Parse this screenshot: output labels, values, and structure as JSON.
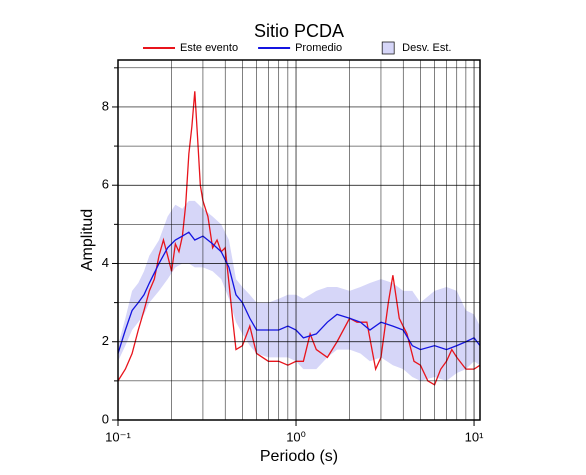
{
  "chart_data": {
    "type": "line",
    "title": "Sitio PCDA",
    "x_label": "Periodo (s)",
    "y_label": "Amplitud",
    "xscale": "log",
    "grid": true,
    "minor_grid": true,
    "legend": "top",
    "xlim": [
      0.1,
      10.8
    ],
    "ylim": [
      0,
      9.2
    ],
    "xticks": [
      {
        "value": 0.1,
        "label": "10⁻¹"
      },
      {
        "value": 1,
        "label": "10⁰"
      },
      {
        "value": 10,
        "label": "10¹"
      }
    ],
    "yticks": [
      0,
      2,
      4,
      6,
      8
    ],
    "series": [
      {
        "name": "Este evento",
        "color": "#e8141c",
        "x": [
          0.1,
          0.11,
          0.12,
          0.13,
          0.14,
          0.15,
          0.16,
          0.17,
          0.18,
          0.19,
          0.2,
          0.21,
          0.22,
          0.23,
          0.24,
          0.25,
          0.26,
          0.27,
          0.28,
          0.29,
          0.3,
          0.32,
          0.34,
          0.36,
          0.38,
          0.4,
          0.42,
          0.44,
          0.46,
          0.5,
          0.55,
          0.6,
          0.7,
          0.8,
          0.9,
          1.0,
          1.1,
          1.2,
          1.3,
          1.5,
          1.7,
          2.0,
          2.2,
          2.5,
          2.8,
          3.0,
          3.3,
          3.5,
          3.8,
          4.2,
          4.6,
          5.0,
          5.5,
          6.0,
          6.5,
          7.0,
          7.5,
          8.0,
          9.0,
          10.0,
          10.8
        ],
        "values": [
          1.0,
          1.3,
          1.7,
          2.3,
          2.8,
          3.3,
          3.6,
          4.2,
          4.6,
          4.2,
          3.8,
          4.5,
          4.3,
          4.7,
          5.5,
          6.8,
          7.5,
          8.4,
          7.2,
          6.0,
          5.6,
          5.2,
          4.4,
          4.6,
          4.3,
          4.4,
          3.5,
          2.6,
          1.8,
          1.9,
          2.4,
          1.7,
          1.5,
          1.5,
          1.4,
          1.5,
          1.5,
          2.2,
          1.8,
          1.6,
          2.0,
          2.6,
          2.5,
          2.5,
          1.3,
          1.6,
          3.0,
          3.7,
          2.6,
          2.2,
          1.5,
          1.4,
          1.0,
          0.9,
          1.3,
          1.5,
          1.8,
          1.6,
          1.3,
          1.3,
          1.4
        ]
      },
      {
        "name": "Promedio",
        "color": "#1414e0",
        "x": [
          0.1,
          0.11,
          0.12,
          0.13,
          0.14,
          0.15,
          0.17,
          0.19,
          0.21,
          0.23,
          0.25,
          0.27,
          0.3,
          0.34,
          0.38,
          0.42,
          0.46,
          0.5,
          0.55,
          0.6,
          0.7,
          0.8,
          0.9,
          1.0,
          1.1,
          1.3,
          1.5,
          1.7,
          2.0,
          2.3,
          2.6,
          3.0,
          3.5,
          4.0,
          4.5,
          5.0,
          6.0,
          7.0,
          8.0,
          9.0,
          10,
          10.8
        ],
        "values": [
          1.7,
          2.3,
          2.8,
          3.0,
          3.2,
          3.5,
          4.0,
          4.4,
          4.6,
          4.7,
          4.8,
          4.6,
          4.7,
          4.5,
          4.3,
          3.9,
          3.2,
          3.0,
          2.6,
          2.3,
          2.3,
          2.3,
          2.4,
          2.3,
          2.1,
          2.2,
          2.5,
          2.7,
          2.6,
          2.5,
          2.3,
          2.5,
          2.4,
          2.3,
          1.9,
          1.8,
          1.9,
          1.8,
          1.9,
          2.0,
          2.1,
          1.9
        ]
      },
      {
        "name": "Desv. Est.",
        "color": "#d6d6f8",
        "band": true,
        "x": [
          0.1,
          0.11,
          0.12,
          0.13,
          0.14,
          0.15,
          0.17,
          0.19,
          0.21,
          0.23,
          0.25,
          0.27,
          0.3,
          0.34,
          0.38,
          0.42,
          0.46,
          0.5,
          0.55,
          0.6,
          0.7,
          0.8,
          0.9,
          1.0,
          1.1,
          1.3,
          1.5,
          1.7,
          2.0,
          2.3,
          2.6,
          3.0,
          3.5,
          4.0,
          4.5,
          5.0,
          6.0,
          7.0,
          8.0,
          9.0,
          10,
          10.8
        ],
        "upper": [
          1.9,
          2.6,
          3.3,
          3.5,
          3.8,
          4.2,
          4.6,
          5.2,
          5.5,
          5.4,
          5.6,
          5.6,
          5.4,
          5.2,
          5.0,
          4.6,
          3.6,
          3.4,
          3.2,
          3.0,
          3.0,
          3.1,
          3.2,
          3.2,
          3.1,
          3.3,
          3.4,
          3.4,
          3.3,
          3.4,
          3.5,
          3.6,
          3.5,
          3.3,
          3.3,
          3.0,
          3.3,
          3.4,
          3.3,
          2.8,
          2.7,
          2.4
        ],
        "lower": [
          1.5,
          1.9,
          2.3,
          2.5,
          2.7,
          3.0,
          3.3,
          3.6,
          3.9,
          4.0,
          4.0,
          3.9,
          3.9,
          3.8,
          3.6,
          3.1,
          2.5,
          2.2,
          1.9,
          1.7,
          1.6,
          1.6,
          1.6,
          1.5,
          1.3,
          1.3,
          1.6,
          1.8,
          1.8,
          1.7,
          1.5,
          1.6,
          1.4,
          1.3,
          1.1,
          1.0,
          1.1,
          1.0,
          1.2,
          1.3,
          1.5,
          1.4
        ]
      }
    ]
  }
}
